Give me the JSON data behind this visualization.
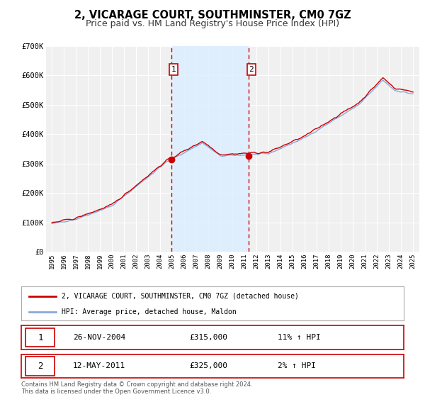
{
  "title": "2, VICARAGE COURT, SOUTHMINSTER, CM0 7GZ",
  "subtitle": "Price paid vs. HM Land Registry's House Price Index (HPI)",
  "background_color": "#ffffff",
  "plot_bg_color": "#f0f0f0",
  "grid_color": "#ffffff",
  "ylim": [
    0,
    700000
  ],
  "yticks": [
    0,
    100000,
    200000,
    300000,
    400000,
    500000,
    600000,
    700000
  ],
  "ytick_labels": [
    "£0",
    "£100K",
    "£200K",
    "£300K",
    "£400K",
    "£500K",
    "£600K",
    "£700K"
  ],
  "sale1_date": 2004.9,
  "sale1_price": 315000,
  "sale2_date": 2011.37,
  "sale2_price": 325000,
  "shade_color": "#ddeeff",
  "sale_line_color": "#cc0000",
  "hpi_line_color": "#88aadd",
  "property_line_color": "#cc0000",
  "legend_label1": "2, VICARAGE COURT, SOUTHMINSTER, CM0 7GZ (detached house)",
  "legend_label2": "HPI: Average price, detached house, Maldon",
  "table_row1_num": "1",
  "table_row1_date": "26-NOV-2004",
  "table_row1_price": "£315,000",
  "table_row1_hpi": "11% ↑ HPI",
  "table_row2_num": "2",
  "table_row2_date": "12-MAY-2011",
  "table_row2_price": "£325,000",
  "table_row2_hpi": "2% ↑ HPI",
  "footnote1": "Contains HM Land Registry data © Crown copyright and database right 2024.",
  "footnote2": "This data is licensed under the Open Government Licence v3.0.",
  "title_fontsize": 10.5,
  "subtitle_fontsize": 9
}
